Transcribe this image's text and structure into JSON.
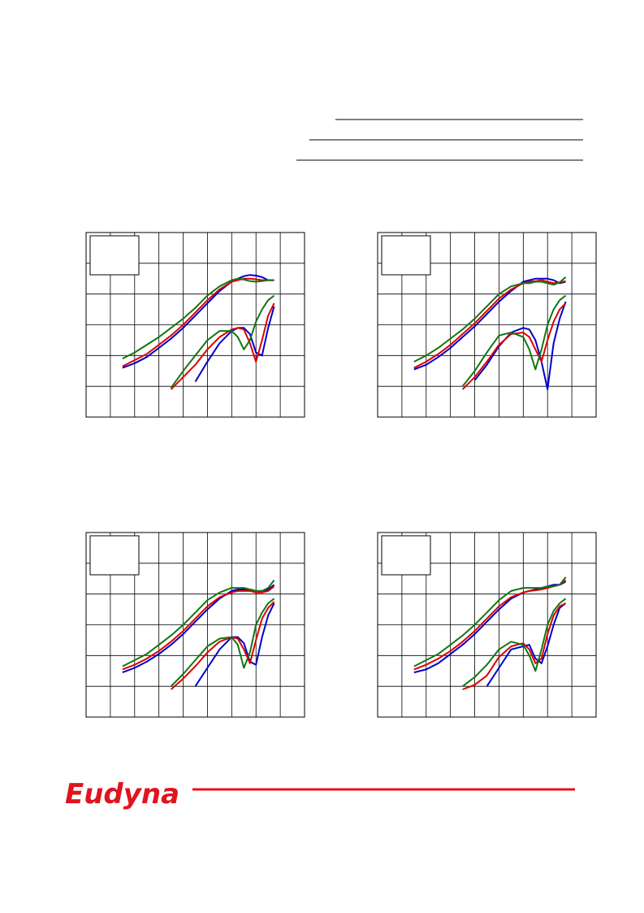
{
  "logo_text": "Eudyna",
  "chart_data": [
    {
      "type": "line",
      "xlim": [
        0,
        9
      ],
      "ylim": [
        0,
        6
      ],
      "xticks": [
        0,
        1,
        2,
        3,
        4,
        5,
        6,
        7,
        8,
        9
      ],
      "yticks": [
        0,
        1,
        2,
        3,
        4,
        5,
        6
      ],
      "grid": true,
      "x": [
        1.5,
        2,
        2.5,
        3,
        3.5,
        4,
        4.5,
        5,
        5.5,
        6,
        6.25,
        6.5,
        6.75,
        7,
        7.25,
        7.5,
        7.75
      ],
      "series": [
        {
          "color": "#0000cc",
          "values": [
            1.6,
            1.75,
            1.95,
            2.25,
            2.55,
            2.9,
            3.3,
            3.7,
            4.1,
            4.4,
            4.5,
            4.58,
            4.62,
            4.6,
            4.55,
            4.45,
            4.45
          ]
        },
        {
          "color": "#dd0000",
          "values": [
            1.65,
            1.85,
            2.05,
            2.35,
            2.65,
            3.0,
            3.4,
            3.8,
            4.15,
            4.4,
            4.45,
            4.5,
            4.5,
            4.48,
            4.45,
            4.45,
            4.45
          ]
        },
        {
          "color": "#117711",
          "values": [
            1.9,
            2.1,
            2.35,
            2.6,
            2.9,
            3.2,
            3.55,
            3.95,
            4.25,
            4.45,
            4.5,
            4.47,
            4.42,
            4.4,
            4.42,
            4.45,
            4.45
          ]
        },
        {
          "color": "#0000cc",
          "values": [
            null,
            null,
            null,
            null,
            null,
            null,
            1.15,
            1.8,
            2.4,
            2.8,
            2.9,
            2.9,
            2.7,
            2.1,
            2.0,
            2.9,
            3.6
          ]
        },
        {
          "color": "#dd0000",
          "values": [
            null,
            null,
            null,
            null,
            0.9,
            1.3,
            1.7,
            2.2,
            2.6,
            2.85,
            2.9,
            2.85,
            2.4,
            1.8,
            2.5,
            3.3,
            3.7
          ]
        },
        {
          "color": "#117711",
          "values": [
            null,
            null,
            null,
            null,
            0.95,
            1.5,
            2.0,
            2.5,
            2.8,
            2.8,
            2.6,
            2.2,
            2.5,
            3.1,
            3.5,
            3.8,
            3.95
          ]
        }
      ]
    },
    {
      "type": "line",
      "xlim": [
        0,
        9
      ],
      "ylim": [
        0,
        6
      ],
      "xticks": [
        0,
        1,
        2,
        3,
        4,
        5,
        6,
        7,
        8,
        9
      ],
      "yticks": [
        0,
        1,
        2,
        3,
        4,
        5,
        6
      ],
      "grid": true,
      "x": [
        1.5,
        2,
        2.5,
        3,
        3.5,
        4,
        4.5,
        5,
        5.5,
        6,
        6.25,
        6.5,
        6.75,
        7,
        7.25,
        7.5,
        7.75
      ],
      "series": [
        {
          "color": "#0000cc",
          "values": [
            1.55,
            1.7,
            1.95,
            2.25,
            2.6,
            2.95,
            3.35,
            3.75,
            4.1,
            4.4,
            4.45,
            4.5,
            4.5,
            4.5,
            4.45,
            4.35,
            4.4
          ]
        },
        {
          "color": "#dd0000",
          "values": [
            1.6,
            1.8,
            2.05,
            2.35,
            2.7,
            3.05,
            3.45,
            3.85,
            4.15,
            4.35,
            4.4,
            4.42,
            4.45,
            4.4,
            4.35,
            4.38,
            4.42
          ]
        },
        {
          "color": "#117711",
          "values": [
            1.8,
            2.0,
            2.25,
            2.55,
            2.85,
            3.2,
            3.6,
            4.0,
            4.25,
            4.35,
            4.35,
            4.4,
            4.4,
            4.35,
            4.3,
            4.38,
            4.55
          ]
        },
        {
          "color": "#0000cc",
          "values": [
            null,
            null,
            null,
            null,
            null,
            1.2,
            1.7,
            2.3,
            2.75,
            2.9,
            2.85,
            2.5,
            1.8,
            0.9,
            2.4,
            3.2,
            3.75
          ]
        },
        {
          "color": "#dd0000",
          "values": [
            null,
            null,
            null,
            null,
            0.9,
            1.3,
            1.8,
            2.35,
            2.7,
            2.75,
            2.6,
            2.2,
            1.8,
            2.5,
            3.1,
            3.5,
            3.7
          ]
        },
        {
          "color": "#117711",
          "values": [
            null,
            null,
            null,
            null,
            1.0,
            1.5,
            2.1,
            2.65,
            2.75,
            2.6,
            2.2,
            1.55,
            2.2,
            3.0,
            3.5,
            3.8,
            3.95
          ]
        }
      ]
    },
    {
      "type": "line",
      "xlim": [
        0,
        9
      ],
      "ylim": [
        0,
        6
      ],
      "xticks": [
        0,
        1,
        2,
        3,
        4,
        5,
        6,
        7,
        8,
        9
      ],
      "yticks": [
        0,
        1,
        2,
        3,
        4,
        5,
        6
      ],
      "grid": true,
      "x": [
        1.5,
        2,
        2.5,
        3,
        3.5,
        4,
        4.5,
        5,
        5.5,
        6,
        6.25,
        6.5,
        6.75,
        7,
        7.25,
        7.5,
        7.75
      ],
      "series": [
        {
          "color": "#0000cc",
          "values": [
            1.45,
            1.6,
            1.8,
            2.05,
            2.35,
            2.7,
            3.1,
            3.5,
            3.85,
            4.1,
            4.15,
            4.15,
            4.15,
            4.1,
            4.1,
            4.15,
            4.3
          ]
        },
        {
          "color": "#dd0000",
          "values": [
            1.55,
            1.7,
            1.9,
            2.15,
            2.45,
            2.8,
            3.2,
            3.6,
            3.9,
            4.05,
            4.1,
            4.1,
            4.1,
            4.05,
            4.05,
            4.1,
            4.25
          ]
        },
        {
          "color": "#117711",
          "values": [
            1.65,
            1.85,
            2.05,
            2.35,
            2.65,
            3.0,
            3.4,
            3.8,
            4.05,
            4.2,
            4.2,
            4.2,
            4.15,
            4.1,
            4.1,
            4.2,
            4.45
          ]
        },
        {
          "color": "#0000cc",
          "values": [
            null,
            null,
            null,
            null,
            null,
            null,
            1.0,
            1.6,
            2.2,
            2.6,
            2.6,
            2.4,
            1.8,
            1.7,
            2.6,
            3.3,
            3.7
          ]
        },
        {
          "color": "#dd0000",
          "values": [
            null,
            null,
            null,
            null,
            0.9,
            1.25,
            1.65,
            2.1,
            2.45,
            2.6,
            2.55,
            2.2,
            1.75,
            2.5,
            3.2,
            3.55,
            3.75
          ]
        },
        {
          "color": "#117711",
          "values": [
            null,
            null,
            null,
            null,
            1.0,
            1.4,
            1.85,
            2.3,
            2.55,
            2.6,
            2.35,
            1.6,
            2.1,
            3.0,
            3.4,
            3.7,
            3.85
          ]
        }
      ]
    },
    {
      "type": "line",
      "xlim": [
        0,
        9
      ],
      "ylim": [
        0,
        6
      ],
      "xticks": [
        0,
        1,
        2,
        3,
        4,
        5,
        6,
        7,
        8,
        9
      ],
      "yticks": [
        0,
        1,
        2,
        3,
        4,
        5,
        6
      ],
      "grid": true,
      "x": [
        1.5,
        2,
        2.5,
        3,
        3.5,
        4,
        4.5,
        5,
        5.5,
        6,
        6.25,
        6.5,
        6.75,
        7,
        7.25,
        7.5,
        7.75
      ],
      "series": [
        {
          "color": "#0000cc",
          "values": [
            1.45,
            1.55,
            1.75,
            2.05,
            2.35,
            2.7,
            3.1,
            3.5,
            3.85,
            4.05,
            4.1,
            4.15,
            4.2,
            4.25,
            4.3,
            4.3,
            4.4
          ]
        },
        {
          "color": "#dd0000",
          "values": [
            1.55,
            1.7,
            1.9,
            2.15,
            2.45,
            2.8,
            3.2,
            3.6,
            3.9,
            4.05,
            4.1,
            4.12,
            4.15,
            4.2,
            4.25,
            4.3,
            4.45
          ]
        },
        {
          "color": "#117711",
          "values": [
            1.65,
            1.85,
            2.05,
            2.35,
            2.65,
            3.0,
            3.4,
            3.8,
            4.1,
            4.2,
            4.2,
            4.2,
            4.2,
            4.25,
            4.25,
            4.3,
            4.55
          ]
        },
        {
          "color": "#0000cc",
          "values": [
            null,
            null,
            null,
            null,
            null,
            null,
            1.0,
            1.6,
            2.2,
            2.3,
            2.35,
            1.9,
            1.75,
            2.3,
            3.0,
            3.55,
            3.7
          ]
        },
        {
          "color": "#dd0000",
          "values": [
            null,
            null,
            null,
            null,
            0.9,
            1.05,
            1.35,
            1.95,
            2.3,
            2.4,
            2.2,
            1.75,
            1.9,
            2.7,
            3.3,
            3.6,
            3.7
          ]
        },
        {
          "color": "#117711",
          "values": [
            null,
            null,
            null,
            null,
            1.0,
            1.3,
            1.7,
            2.2,
            2.45,
            2.35,
            2.0,
            1.5,
            2.2,
            3.0,
            3.45,
            3.7,
            3.85
          ]
        }
      ]
    }
  ]
}
